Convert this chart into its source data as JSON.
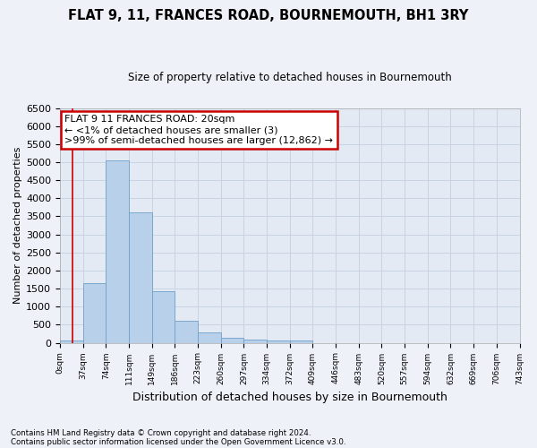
{
  "title": "FLAT 9, 11, FRANCES ROAD, BOURNEMOUTH, BH1 3RY",
  "subtitle": "Size of property relative to detached houses in Bournemouth",
  "xlabel": "Distribution of detached houses by size in Bournemouth",
  "ylabel": "Number of detached properties",
  "footnote1": "Contains HM Land Registry data © Crown copyright and database right 2024.",
  "footnote2": "Contains public sector information licensed under the Open Government Licence v3.0.",
  "bar_values": [
    65,
    1650,
    5060,
    3600,
    1420,
    615,
    295,
    140,
    100,
    75,
    75,
    0,
    0,
    0,
    0,
    0,
    0,
    0,
    0,
    0
  ],
  "bin_labels": [
    "0sqm",
    "37sqm",
    "74sqm",
    "111sqm",
    "149sqm",
    "186sqm",
    "223sqm",
    "260sqm",
    "297sqm",
    "334sqm",
    "372sqm",
    "409sqm",
    "446sqm",
    "483sqm",
    "520sqm",
    "557sqm",
    "594sqm",
    "632sqm",
    "669sqm",
    "706sqm",
    "743sqm"
  ],
  "bar_color": "#b8d0ea",
  "bar_edge_color": "#6fa0c8",
  "grid_color": "#c8d4e4",
  "annotation_box_color": "#cc0000",
  "annotation_line1": "FLAT 9 11 FRANCES ROAD: 20sqm",
  "annotation_line2": "← <1% of detached houses are smaller (3)",
  "annotation_line3": ">99% of semi-detached houses are larger (12,862) →",
  "ylim": [
    0,
    6500
  ],
  "yticks": [
    0,
    500,
    1000,
    1500,
    2000,
    2500,
    3000,
    3500,
    4000,
    4500,
    5000,
    5500,
    6000,
    6500
  ],
  "bg_color": "#eef2f8",
  "plot_bg_color": "#e4eaf4",
  "title_fontsize": 10.5,
  "subtitle_fontsize": 8.5
}
